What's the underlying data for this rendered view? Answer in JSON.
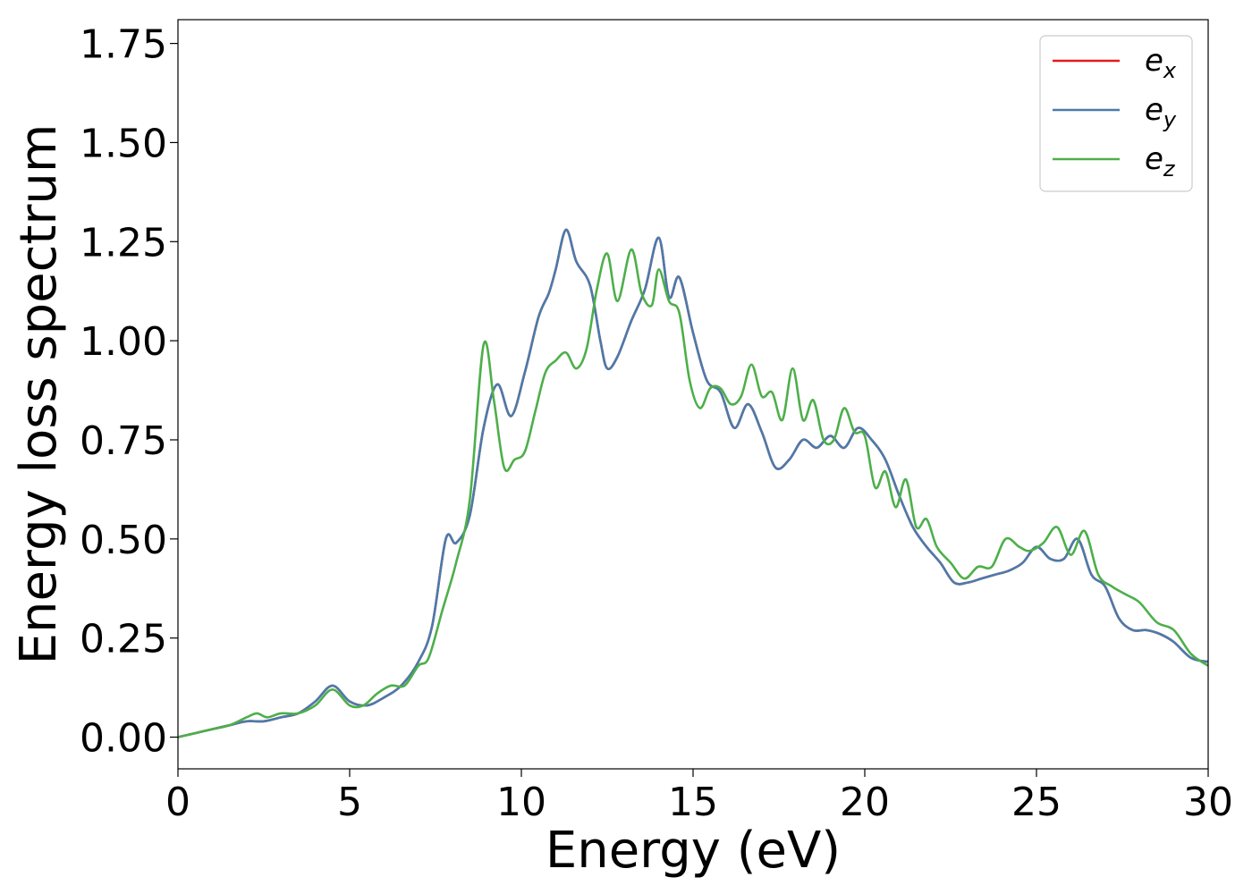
{
  "chart_data": {
    "type": "line",
    "title": "",
    "xlabel": "Energy (eV)",
    "ylabel": "Energy loss spectrum",
    "xlim": [
      0,
      30
    ],
    "ylim": [
      -0.08,
      1.81
    ],
    "xticks": [
      0,
      5,
      10,
      15,
      20,
      25,
      30
    ],
    "xtick_labels": [
      "0",
      "5",
      "10",
      "15",
      "20",
      "25",
      "30"
    ],
    "yticks": [
      0,
      0.25,
      0.5,
      0.75,
      1.0,
      1.25,
      1.5,
      1.75
    ],
    "ytick_labels": [
      "0.00",
      "0.25",
      "0.50",
      "0.75",
      "1.00",
      "1.25",
      "1.50",
      "1.75"
    ],
    "grid": false,
    "legend": {
      "placement": "top-right"
    },
    "series": [
      {
        "name": "e_x",
        "label_base": "e",
        "label_sub": "x",
        "color": "#e41a1c",
        "x": [
          0,
          0.5,
          1,
          1.5,
          2,
          2.5,
          3,
          3.5,
          4,
          4.5,
          5,
          5.5,
          6,
          6.5,
          7,
          7.4,
          7.8,
          8.1,
          8.5,
          8.9,
          9.3,
          9.7,
          10.1,
          10.5,
          10.8,
          11.0,
          11.3,
          11.6,
          12.0,
          12.3,
          12.5,
          12.8,
          13.2,
          13.6,
          14.0,
          14.3,
          14.6,
          15.0,
          15.4,
          15.8,
          16.2,
          16.6,
          17.0,
          17.4,
          17.8,
          18.2,
          18.6,
          19.0,
          19.4,
          19.8,
          20.2,
          20.6,
          21.0,
          21.4,
          21.8,
          22.2,
          22.6,
          23.0,
          23.4,
          23.8,
          24.2,
          24.6,
          25.0,
          25.4,
          25.8,
          26.2,
          26.6,
          27.0,
          27.4,
          27.8,
          28.2,
          28.6,
          29.0,
          29.5,
          30
        ],
        "y": [
          0.0,
          0.01,
          0.02,
          0.03,
          0.04,
          0.04,
          0.05,
          0.06,
          0.09,
          0.13,
          0.09,
          0.08,
          0.1,
          0.13,
          0.19,
          0.28,
          0.5,
          0.49,
          0.56,
          0.78,
          0.89,
          0.81,
          0.92,
          1.06,
          1.12,
          1.18,
          1.28,
          1.2,
          1.14,
          1.0,
          0.93,
          0.96,
          1.05,
          1.13,
          1.26,
          1.11,
          1.16,
          1.02,
          0.9,
          0.87,
          0.78,
          0.84,
          0.77,
          0.68,
          0.7,
          0.75,
          0.73,
          0.76,
          0.73,
          0.78,
          0.75,
          0.7,
          0.61,
          0.53,
          0.48,
          0.44,
          0.39,
          0.39,
          0.4,
          0.41,
          0.42,
          0.44,
          0.48,
          0.45,
          0.45,
          0.5,
          0.41,
          0.38,
          0.3,
          0.27,
          0.27,
          0.26,
          0.24,
          0.2,
          0.19
        ]
      },
      {
        "name": "e_y",
        "label_base": "e",
        "label_sub": "y",
        "color": "#4a7bab",
        "x": [
          0,
          0.5,
          1,
          1.5,
          2,
          2.5,
          3,
          3.5,
          4,
          4.5,
          5,
          5.5,
          6,
          6.5,
          7,
          7.4,
          7.8,
          8.1,
          8.5,
          8.9,
          9.3,
          9.7,
          10.1,
          10.5,
          10.8,
          11.0,
          11.3,
          11.6,
          12.0,
          12.3,
          12.5,
          12.8,
          13.2,
          13.6,
          14.0,
          14.3,
          14.6,
          15.0,
          15.4,
          15.8,
          16.2,
          16.6,
          17.0,
          17.4,
          17.8,
          18.2,
          18.6,
          19.0,
          19.4,
          19.8,
          20.2,
          20.6,
          21.0,
          21.4,
          21.8,
          22.2,
          22.6,
          23.0,
          23.4,
          23.8,
          24.2,
          24.6,
          25.0,
          25.4,
          25.8,
          26.2,
          26.6,
          27.0,
          27.4,
          27.8,
          28.2,
          28.6,
          29.0,
          29.5,
          30
        ],
        "y": [
          0.0,
          0.01,
          0.02,
          0.03,
          0.04,
          0.04,
          0.05,
          0.06,
          0.09,
          0.13,
          0.09,
          0.08,
          0.1,
          0.13,
          0.19,
          0.28,
          0.5,
          0.49,
          0.56,
          0.78,
          0.89,
          0.81,
          0.92,
          1.06,
          1.12,
          1.18,
          1.28,
          1.2,
          1.14,
          1.0,
          0.93,
          0.96,
          1.05,
          1.13,
          1.26,
          1.11,
          1.16,
          1.02,
          0.9,
          0.87,
          0.78,
          0.84,
          0.77,
          0.68,
          0.7,
          0.75,
          0.73,
          0.76,
          0.73,
          0.78,
          0.75,
          0.7,
          0.61,
          0.53,
          0.48,
          0.44,
          0.39,
          0.39,
          0.4,
          0.41,
          0.42,
          0.44,
          0.48,
          0.45,
          0.45,
          0.5,
          0.41,
          0.38,
          0.3,
          0.27,
          0.27,
          0.26,
          0.24,
          0.2,
          0.19
        ]
      },
      {
        "name": "e_z",
        "label_base": "e",
        "label_sub": "z",
        "color": "#4daf4a",
        "x": [
          0,
          0.5,
          1,
          1.5,
          2,
          2.3,
          2.6,
          3,
          3.5,
          4,
          4.5,
          5,
          5.4,
          5.8,
          6.2,
          6.6,
          7,
          7.3,
          7.7,
          8.1,
          8.5,
          8.9,
          9.2,
          9.5,
          9.8,
          10.1,
          10.4,
          10.7,
          11.0,
          11.3,
          11.6,
          11.9,
          12.2,
          12.5,
          12.8,
          13.2,
          13.5,
          13.8,
          14.0,
          14.3,
          14.6,
          14.9,
          15.2,
          15.5,
          15.8,
          16.1,
          16.4,
          16.7,
          17.0,
          17.3,
          17.6,
          17.9,
          18.2,
          18.5,
          18.8,
          19.1,
          19.4,
          19.7,
          20.0,
          20.3,
          20.6,
          20.9,
          21.2,
          21.5,
          21.8,
          22.1,
          22.5,
          22.9,
          23.3,
          23.7,
          24.1,
          24.5,
          24.8,
          25.2,
          25.6,
          26.0,
          26.4,
          26.8,
          27.2,
          27.6,
          28.0,
          28.5,
          29.0,
          29.5,
          30
        ],
        "y": [
          0.0,
          0.01,
          0.02,
          0.03,
          0.05,
          0.06,
          0.05,
          0.06,
          0.06,
          0.08,
          0.12,
          0.08,
          0.08,
          0.11,
          0.13,
          0.13,
          0.18,
          0.2,
          0.32,
          0.44,
          0.6,
          0.99,
          0.85,
          0.68,
          0.7,
          0.72,
          0.82,
          0.92,
          0.95,
          0.97,
          0.93,
          0.98,
          1.13,
          1.22,
          1.1,
          1.23,
          1.12,
          1.09,
          1.18,
          1.1,
          1.07,
          0.9,
          0.83,
          0.88,
          0.88,
          0.84,
          0.86,
          0.94,
          0.86,
          0.87,
          0.8,
          0.93,
          0.8,
          0.85,
          0.75,
          0.75,
          0.83,
          0.77,
          0.76,
          0.63,
          0.67,
          0.58,
          0.65,
          0.53,
          0.55,
          0.48,
          0.44,
          0.4,
          0.43,
          0.43,
          0.5,
          0.48,
          0.47,
          0.49,
          0.53,
          0.46,
          0.52,
          0.41,
          0.38,
          0.36,
          0.34,
          0.29,
          0.27,
          0.21,
          0.18
        ]
      }
    ]
  }
}
